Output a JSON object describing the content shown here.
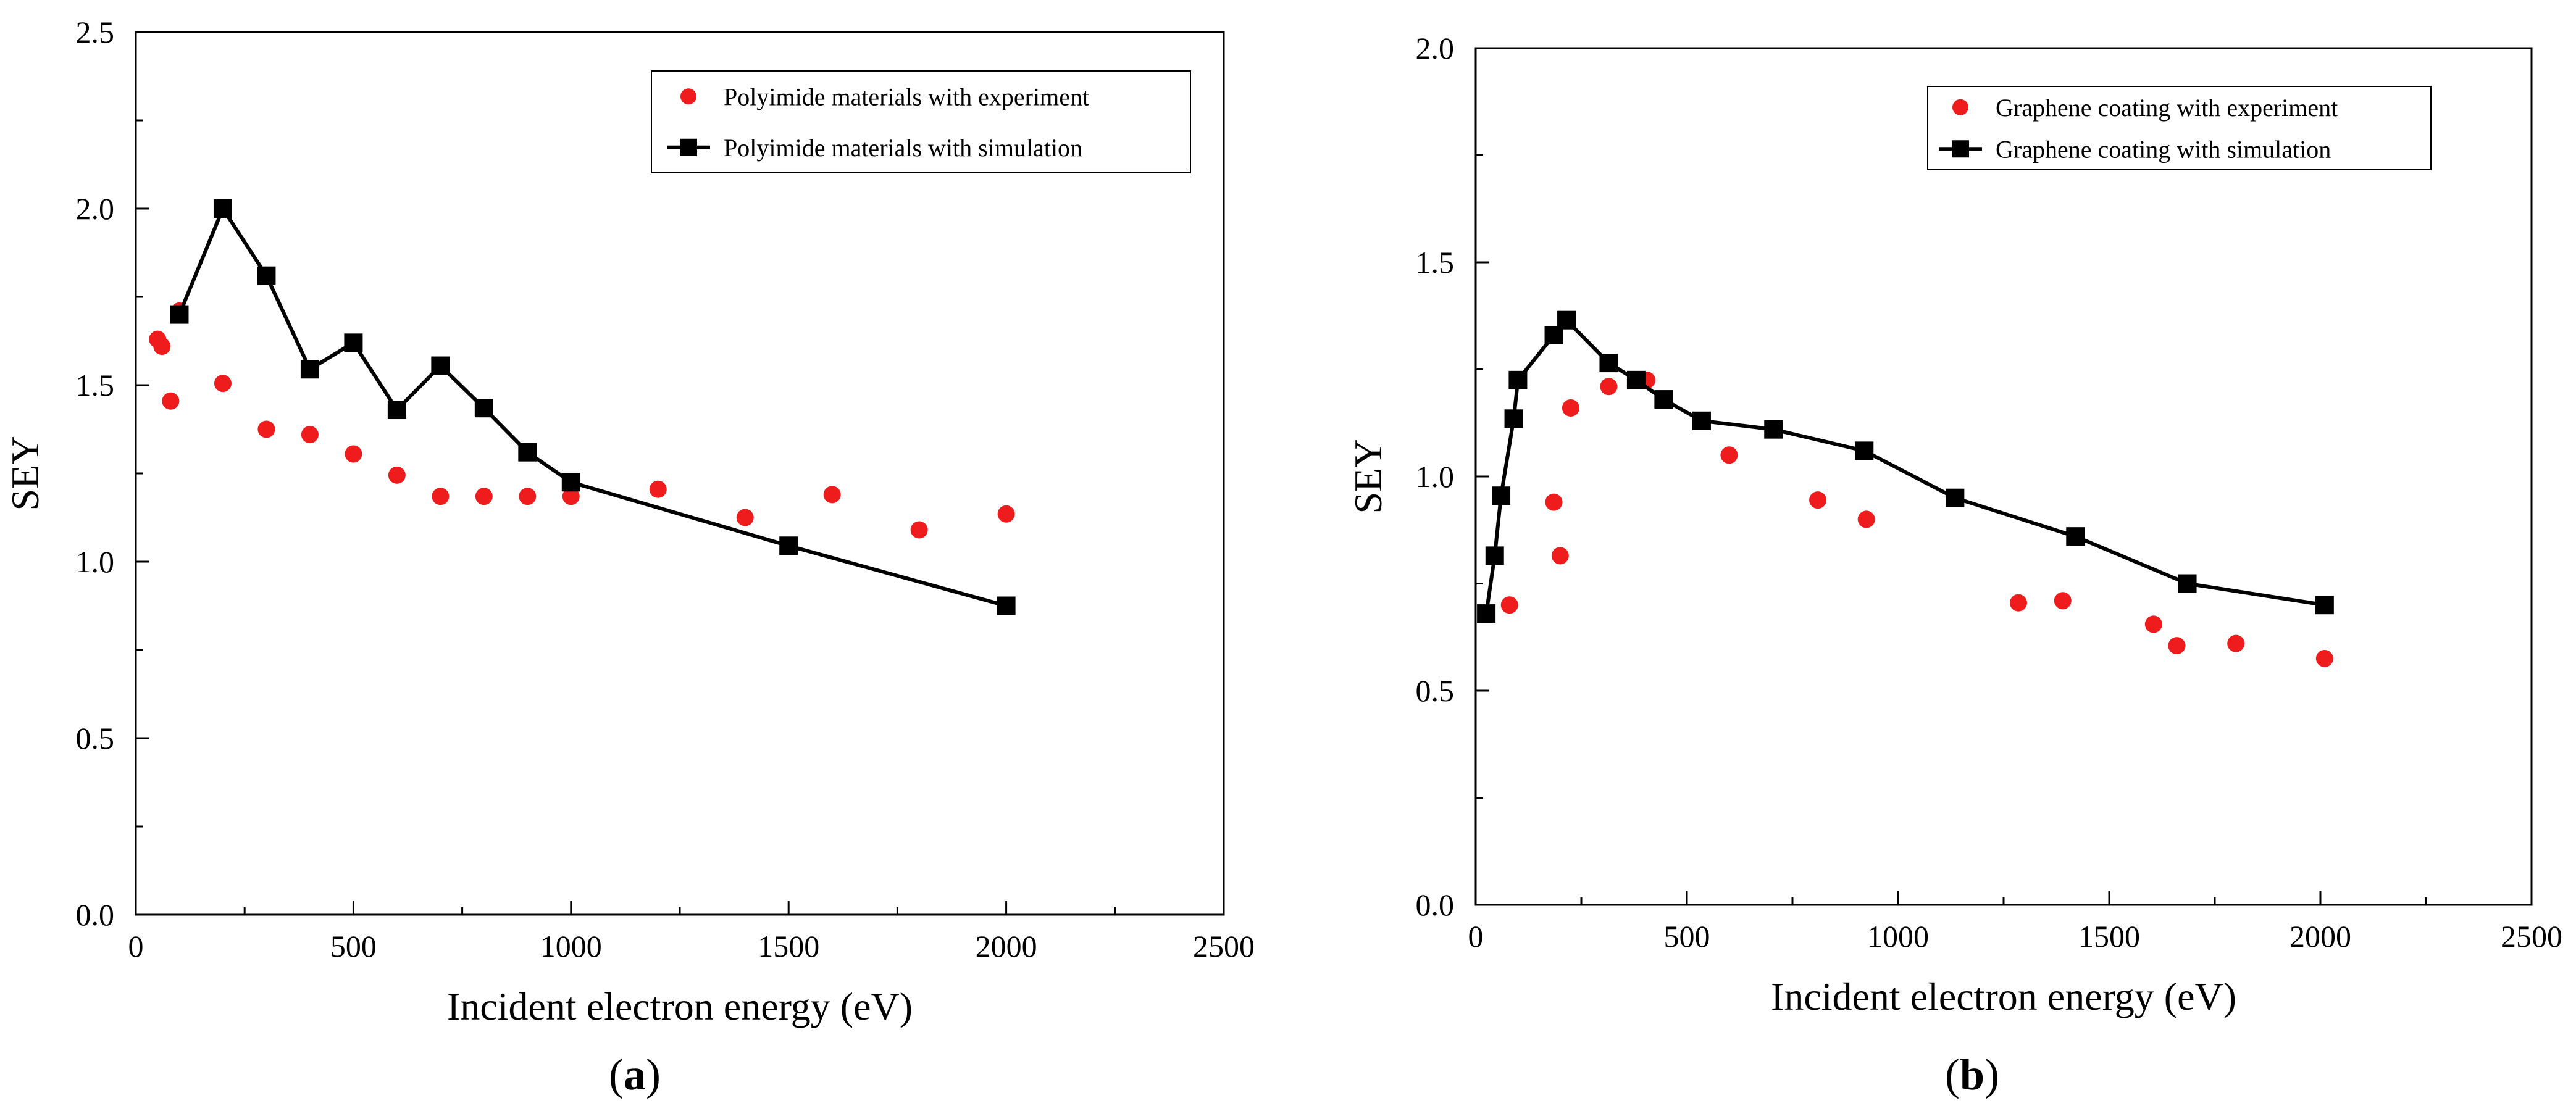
{
  "chart_data": [
    {
      "id": "a",
      "type": "scatter+line",
      "panel_label": "a",
      "xlabel": "Incident electron energy (eV)",
      "ylabel": "SEY",
      "xlim": [
        0,
        2500
      ],
      "ylim": [
        0,
        2.5
      ],
      "xticks": [
        0,
        500,
        1000,
        1500,
        2000,
        2500
      ],
      "xtick_labels": [
        "0",
        "500",
        "1000",
        "1500",
        "2000",
        "2500"
      ],
      "yticks": [
        0,
        0.5,
        1.0,
        1.5,
        2.0,
        2.5
      ],
      "ytick_labels": [
        "0.0",
        "0.5",
        "1.0",
        "1.5",
        "2.0",
        "2.5"
      ],
      "legend_position": "top-right",
      "series": [
        {
          "name": "Polyimide materials with experiment",
          "style": "markers",
          "marker": "circle",
          "color": "#ee1c1c",
          "x": [
            50,
            60,
            80,
            100,
            200,
            300,
            400,
            500,
            600,
            700,
            800,
            900,
            1000,
            1200,
            1400,
            1600,
            1800,
            2000
          ],
          "y": [
            1.63,
            1.61,
            1.455,
            1.71,
            1.505,
            1.375,
            1.36,
            1.305,
            1.245,
            1.185,
            1.185,
            1.185,
            1.185,
            1.205,
            1.125,
            1.19,
            1.09,
            1.135
          ]
        },
        {
          "name": "Polyimide materials with simulation",
          "style": "line+markers",
          "marker": "square",
          "color": "#000000",
          "x": [
            100,
            200,
            300,
            400,
            500,
            600,
            700,
            800,
            900,
            1000,
            1500,
            2000
          ],
          "y": [
            1.7,
            2.0,
            1.81,
            1.545,
            1.62,
            1.43,
            1.555,
            1.435,
            1.31,
            1.225,
            1.045,
            0.875
          ]
        }
      ]
    },
    {
      "id": "b",
      "type": "scatter+line",
      "panel_label": "b",
      "xlabel": "Incident electron energy (eV)",
      "ylabel": "SEY",
      "xlim": [
        0,
        2500
      ],
      "ylim": [
        0,
        2.0
      ],
      "xticks": [
        0,
        500,
        1000,
        1500,
        2000,
        2500
      ],
      "xtick_labels": [
        "0",
        "500",
        "1000",
        "1500",
        "2000",
        "2500"
      ],
      "yticks": [
        0,
        0.5,
        1.0,
        1.5,
        2.0
      ],
      "ytick_labels": [
        "0.0",
        "0.5",
        "1.0",
        "1.5",
        "2.0"
      ],
      "legend_position": "top-right",
      "series": [
        {
          "name": "Graphene coating with experiment",
          "style": "markers",
          "marker": "circle",
          "color": "#ee1c1c",
          "x": [
            80,
            185,
            200,
            225,
            315,
            405,
            600,
            810,
            925,
            1285,
            1390,
            1605,
            1660,
            1800,
            2010
          ],
          "y": [
            0.7,
            0.94,
            0.815,
            1.16,
            1.21,
            1.225,
            1.05,
            0.945,
            0.9,
            0.705,
            0.71,
            0.655,
            0.605,
            0.61,
            0.575
          ]
        },
        {
          "name": "Graphene coating with simulation",
          "style": "line+markers",
          "marker": "square",
          "color": "#000000",
          "x": [
            25,
            45,
            60,
            90,
            100,
            185,
            215,
            315,
            380,
            445,
            535,
            705,
            920,
            1135,
            1420,
            1685,
            2010
          ],
          "y": [
            0.68,
            0.815,
            0.955,
            1.135,
            1.225,
            1.33,
            1.365,
            1.265,
            1.225,
            1.18,
            1.13,
            1.11,
            1.06,
            0.95,
            0.86,
            0.75,
            0.7
          ]
        }
      ]
    }
  ]
}
